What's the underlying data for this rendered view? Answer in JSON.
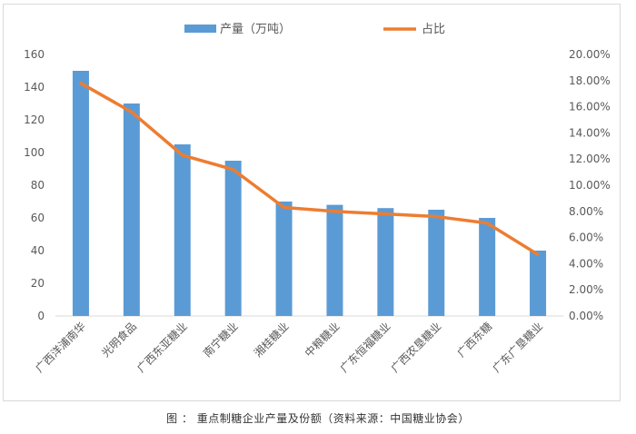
{
  "caption": "图 ： 重点制糖企业产量及份额（资料来源：中国糖业协会）",
  "chart_data": {
    "type": "bar+line",
    "categories": [
      "广西洋浦南华",
      "光明食品",
      "广西东亚糖业",
      "南宁糖业",
      "湘桂糖业",
      "中粮糖业",
      "广东恒福糖业",
      "广西农垦糖业",
      "广西东糖",
      "广东广垦糖业"
    ],
    "series": [
      {
        "name": "产量（万吨）",
        "type": "bar",
        "axis": "left",
        "color": "#5b9bd5",
        "values": [
          150,
          130,
          105,
          95,
          70,
          68,
          66,
          65,
          60,
          40
        ]
      },
      {
        "name": "占比",
        "type": "line",
        "axis": "right",
        "color": "#ed7d31",
        "values": [
          17.8,
          15.6,
          12.3,
          11.2,
          8.3,
          8.0,
          7.8,
          7.6,
          7.1,
          4.7
        ]
      }
    ],
    "ylim_left": [
      0,
      160
    ],
    "ylim_right": [
      0,
      20
    ],
    "yticks_left": [
      "0",
      "20",
      "40",
      "60",
      "80",
      "100",
      "120",
      "140",
      "160"
    ],
    "yticks_right": [
      "0.00%",
      "2.00%",
      "4.00%",
      "6.00%",
      "8.00%",
      "10.00%",
      "12.00%",
      "14.00%",
      "16.00%",
      "18.00%",
      "20.00%"
    ],
    "legend_placement": "top",
    "grid": false
  }
}
